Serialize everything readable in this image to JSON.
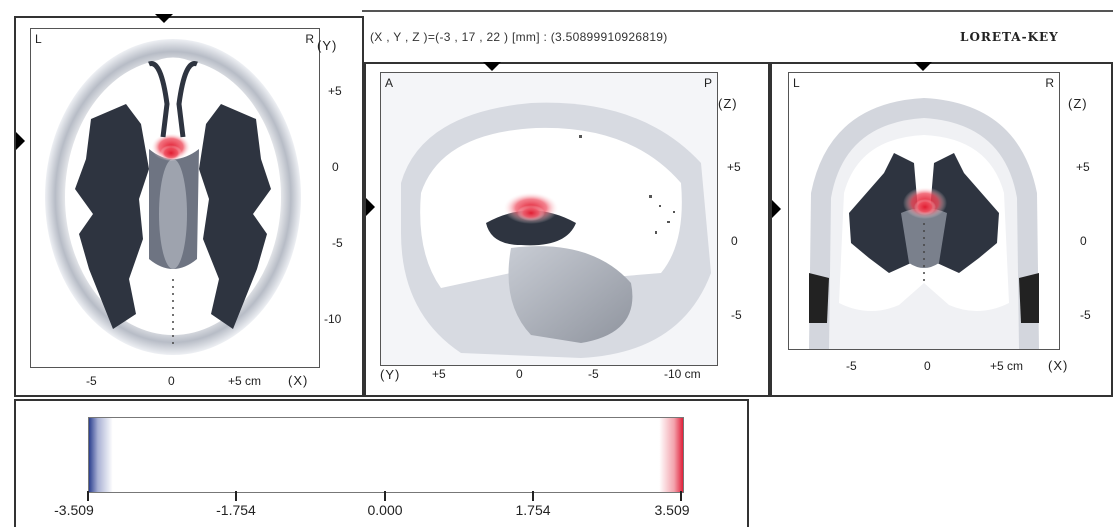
{
  "readout": {
    "text": "(X , Y , Z )=(-3 , 17 , 22 ) [mm] : (3.50899910926819)"
  },
  "brand": "LORETA-KEY",
  "axial": {
    "corner_left": "L",
    "corner_right": "R",
    "axis_y": "(Y)",
    "axis_x": "(X)",
    "y_ticks": [
      "+5",
      "0",
      "-5",
      "-10"
    ],
    "x_ticks": [
      "-5",
      "0",
      "+5 cm"
    ]
  },
  "sagittal": {
    "corner_left": "A",
    "corner_right": "P",
    "axis_z": "(Z)",
    "axis_y": "(Y)",
    "z_ticks": [
      "+5",
      "0",
      "-5"
    ],
    "y_ticks": [
      "+5",
      "0",
      "-5",
      "-10 cm"
    ]
  },
  "coronal": {
    "corner_left": "L",
    "corner_right": "R",
    "axis_z": "(Z)",
    "axis_x": "(X)",
    "z_ticks": [
      "+5",
      "0",
      "-5"
    ],
    "x_ticks": [
      "-5",
      "0",
      "+5 cm"
    ]
  },
  "colorbar": {
    "labels": [
      "-3.509",
      "-1.754",
      "0.000",
      "1.754",
      "3.509"
    ],
    "min": -3.509,
    "max": 3.509,
    "color_negative": "#2b3f8f",
    "color_positive": "#e0203a"
  },
  "colors": {
    "activation": "#e01c30",
    "tissue_dark": "#2e3440"
  }
}
